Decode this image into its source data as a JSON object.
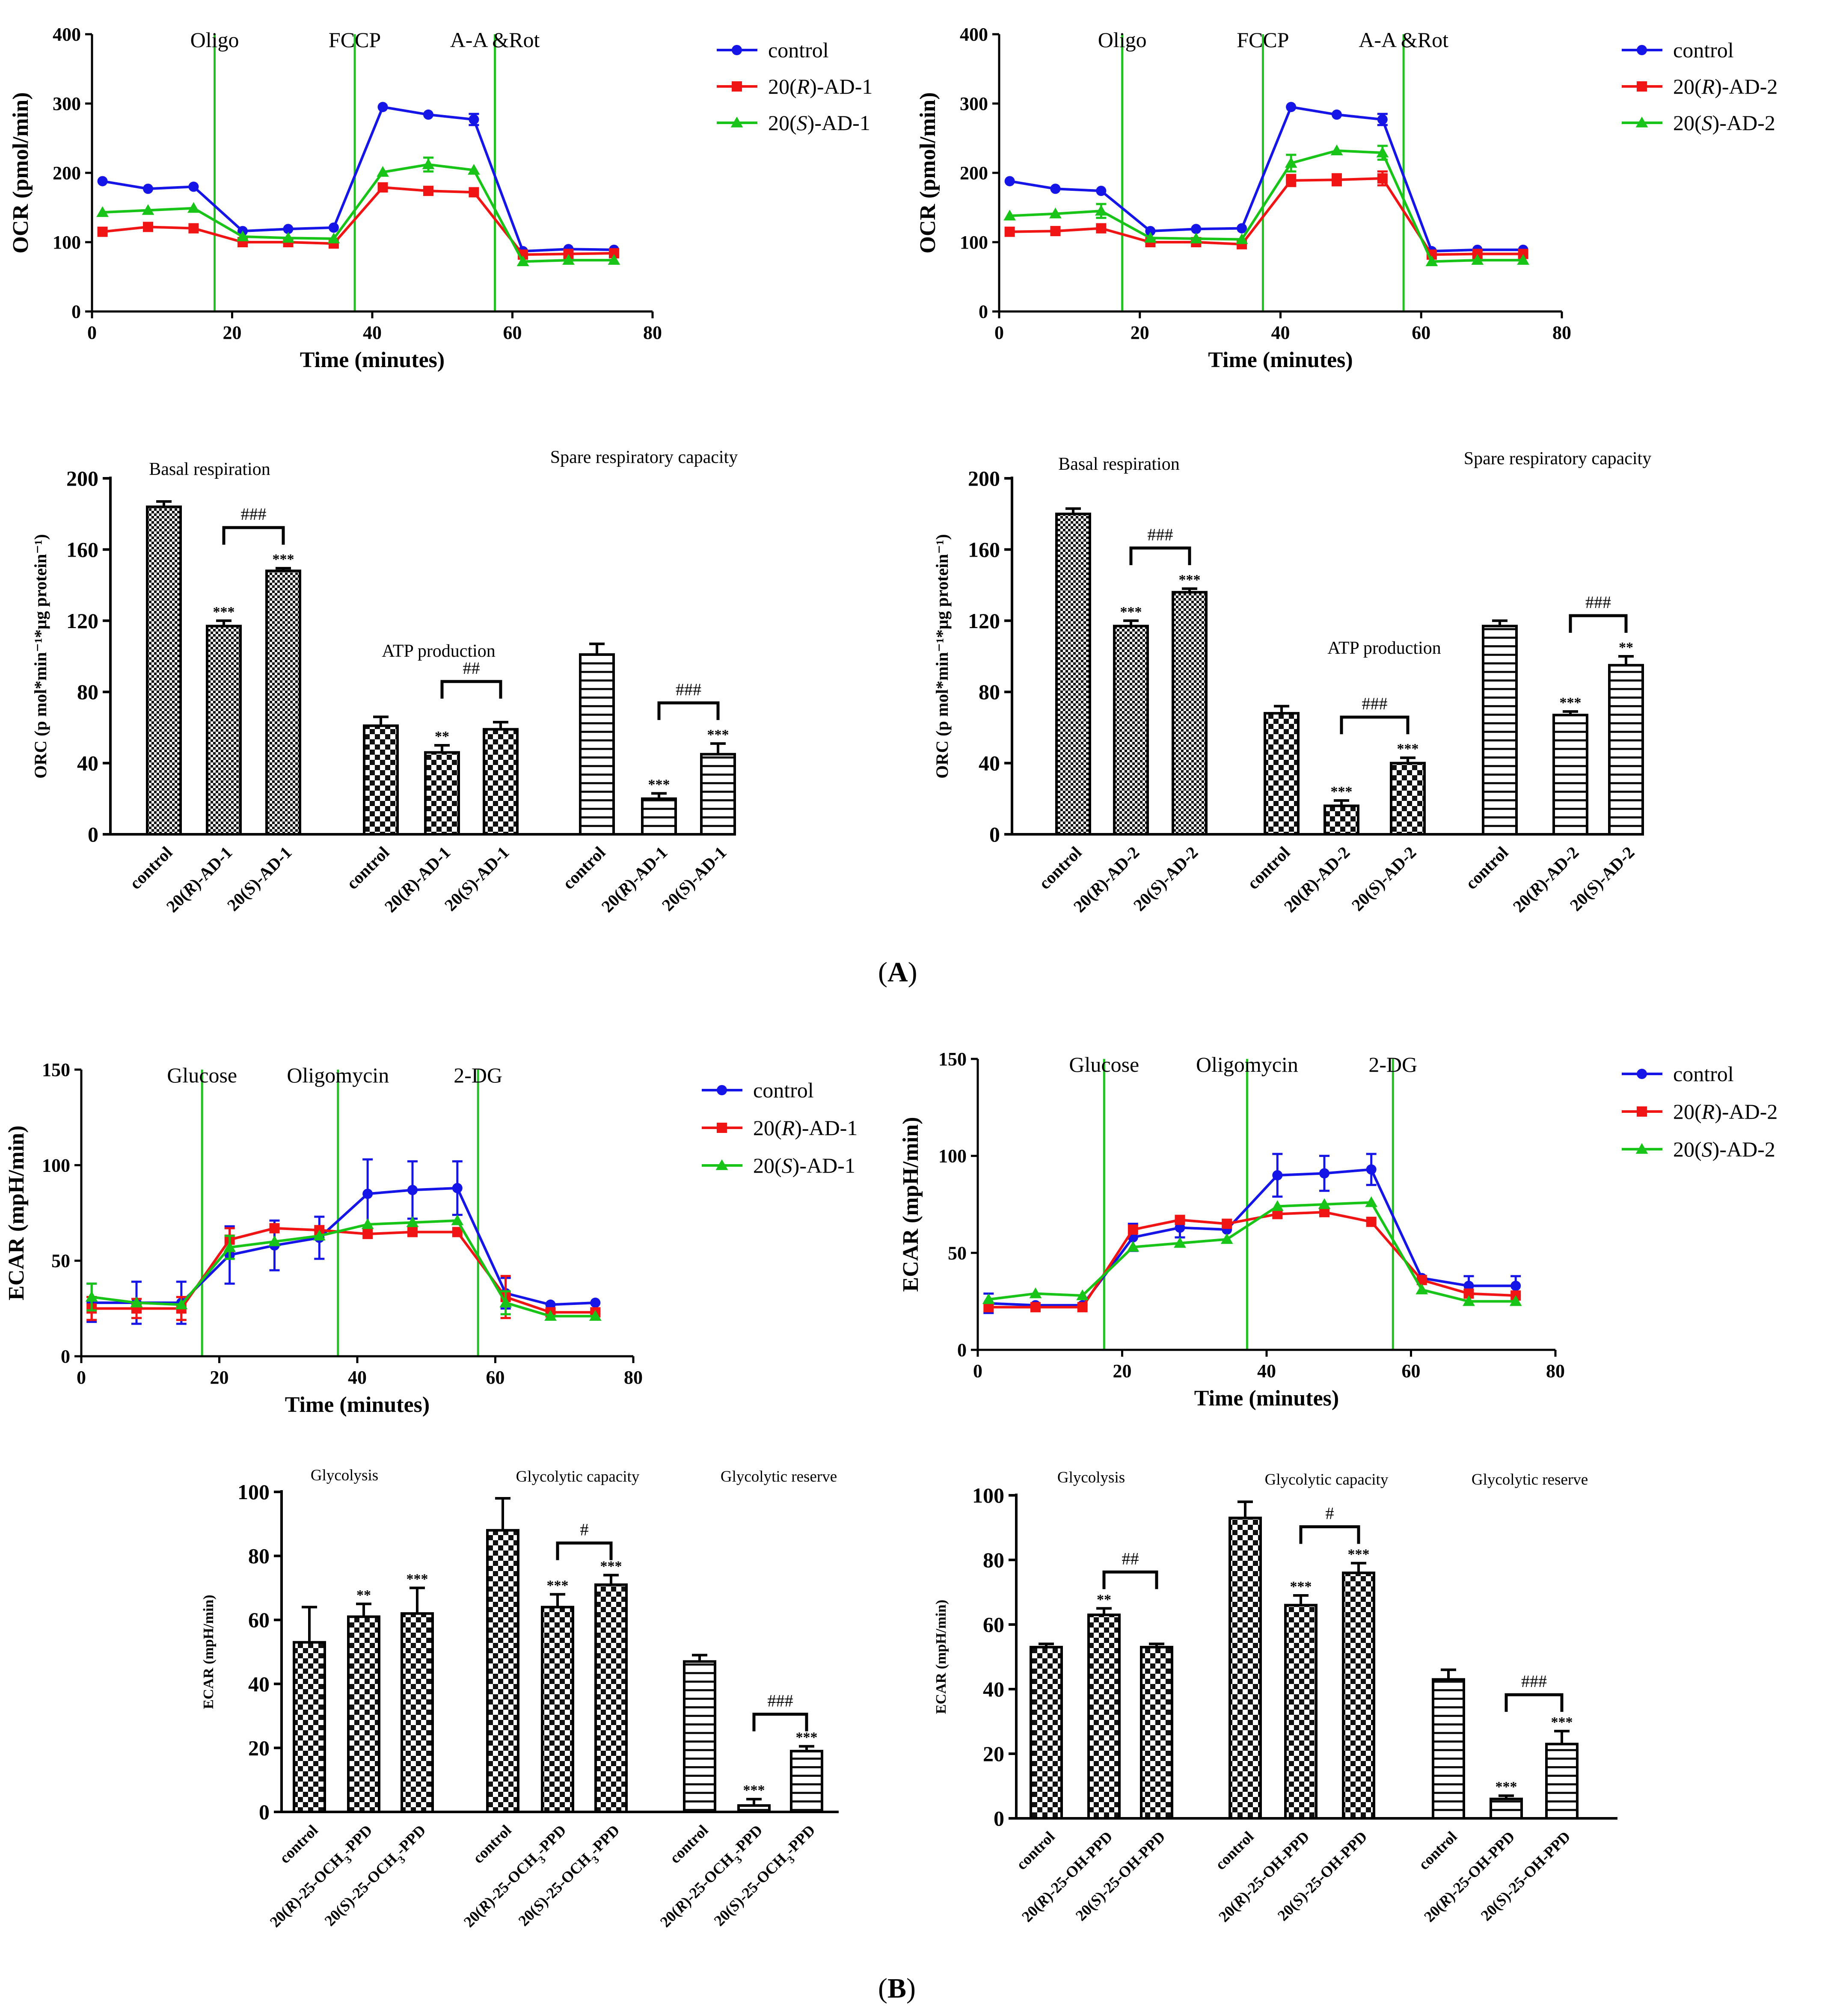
{
  "panel_labels": {
    "a_open": "(",
    "a_letter": "A",
    "a_close": ")",
    "b_open": "(",
    "b_letter": "B",
    "b_close": ")"
  },
  "colors": {
    "control": "#1515e8",
    "r_series": "#f01414",
    "s_series": "#18c418",
    "injection_line": "#22c022"
  },
  "chart_data": [
    {
      "id": "ocr1",
      "type": "line",
      "ylabel": "OCR (pmol/min)",
      "xlabel": "Time (minutes)",
      "xlim": [
        0,
        80
      ],
      "ylim": [
        0,
        400
      ],
      "xticks": [
        0,
        20,
        40,
        60,
        80
      ],
      "yticks": [
        0,
        100,
        200,
        300,
        400
      ],
      "injections": [
        {
          "x": 17.5,
          "label": "Oligo"
        },
        {
          "x": 37.5,
          "label": "FCCP"
        },
        {
          "x": 57.5,
          "label": "A-A &Rot"
        }
      ],
      "x": [
        1.5,
        8,
        14.5,
        21.5,
        28,
        34.5,
        41.5,
        48,
        54.5,
        61.5,
        68,
        74.5
      ],
      "series": [
        {
          "name": "control",
          "color_key": "control",
          "marker": "circle",
          "values": [
            188,
            177,
            180,
            116,
            119,
            121,
            295,
            284,
            277,
            87,
            90,
            89
          ],
          "errors": [
            3,
            3,
            3,
            3,
            3,
            3,
            3,
            3,
            8,
            3,
            3,
            3
          ]
        },
        {
          "name": "20(R)-AD-1",
          "color_key": "r_series",
          "marker": "square",
          "values": [
            115,
            122,
            120,
            100,
            100,
            98,
            179,
            174,
            172,
            82,
            83,
            84
          ],
          "errors": [
            3,
            3,
            3,
            3,
            3,
            3,
            3,
            3,
            3,
            3,
            3,
            3
          ]
        },
        {
          "name": "20(S)-AD-1",
          "color_key": "s_series",
          "marker": "triangle",
          "values": [
            143,
            146,
            149,
            108,
            106,
            105,
            201,
            212,
            204,
            72,
            74,
            74
          ],
          "errors": [
            3,
            3,
            3,
            3,
            3,
            3,
            3,
            10,
            3,
            3,
            3,
            3
          ]
        }
      ]
    },
    {
      "id": "ocr2",
      "type": "line",
      "ylabel": "OCR (pmol/min)",
      "xlabel": "Time (minutes)",
      "xlim": [
        0,
        80
      ],
      "ylim": [
        0,
        400
      ],
      "xticks": [
        0,
        20,
        40,
        60,
        80
      ],
      "yticks": [
        0,
        100,
        200,
        300,
        400
      ],
      "injections": [
        {
          "x": 17.5,
          "label": "Oligo"
        },
        {
          "x": 37.5,
          "label": "FCCP"
        },
        {
          "x": 57.5,
          "label": "A-A &Rot"
        }
      ],
      "x": [
        1.5,
        8,
        14.5,
        21.5,
        28,
        34.5,
        41.5,
        48,
        54.5,
        61.5,
        68,
        74.5
      ],
      "series": [
        {
          "name": "control",
          "color_key": "control",
          "marker": "circle",
          "values": [
            188,
            177,
            174,
            116,
            119,
            120,
            295,
            284,
            277,
            87,
            89,
            89
          ],
          "errors": [
            3,
            3,
            3,
            3,
            3,
            3,
            3,
            3,
            8,
            3,
            3,
            3
          ]
        },
        {
          "name": "20(R)-AD-2",
          "color_key": "r_series",
          "marker": "square",
          "values": [
            115,
            116,
            120,
            100,
            100,
            97,
            189,
            190,
            192,
            82,
            83,
            83
          ],
          "errors": [
            3,
            3,
            3,
            3,
            3,
            3,
            8,
            8,
            10,
            3,
            3,
            3
          ]
        },
        {
          "name": "20(S)-AD-2",
          "color_key": "s_series",
          "marker": "triangle",
          "values": [
            138,
            141,
            145,
            106,
            105,
            104,
            214,
            232,
            229,
            72,
            74,
            74
          ],
          "errors": [
            3,
            3,
            10,
            3,
            3,
            3,
            12,
            3,
            10,
            3,
            3,
            3
          ]
        }
      ]
    },
    {
      "id": "orc1",
      "type": "bar",
      "ylabel": "ORC (p mol*min⁻¹*μg protein⁻¹)",
      "ylim": [
        0,
        200
      ],
      "yticks": [
        0,
        40,
        80,
        120,
        160,
        200
      ],
      "groups": [
        {
          "title": "Basal respiration",
          "pattern": "dense",
          "labels": [
            "control",
            "20(R)-AD-1",
            "20(S)-AD-1"
          ],
          "values": [
            184,
            117,
            148
          ],
          "errors": [
            3,
            3,
            1.5
          ],
          "stars": [
            "",
            "***",
            "***"
          ],
          "bracket": "###"
        },
        {
          "title": "ATP production",
          "pattern": "check",
          "labels": [
            "control",
            "20(R)-AD-1",
            "20(S)-AD-1"
          ],
          "values": [
            61,
            46,
            59
          ],
          "errors": [
            5,
            4,
            4
          ],
          "stars": [
            "",
            "**",
            ""
          ],
          "bracket": "##"
        },
        {
          "title": "Spare respiratory capacity",
          "pattern": "hlines",
          "labels": [
            "control",
            "20(R)-AD-1",
            "20(S)-AD-1"
          ],
          "values": [
            101,
            20,
            45
          ],
          "errors": [
            6,
            3,
            6
          ],
          "stars": [
            "",
            "***",
            "***"
          ],
          "bracket": "###"
        }
      ]
    },
    {
      "id": "orc2",
      "type": "bar",
      "ylabel": "ORC (p mol*min⁻¹*μg protein⁻¹)",
      "ylim": [
        0,
        200
      ],
      "yticks": [
        0,
        40,
        80,
        120,
        160,
        200
      ],
      "groups": [
        {
          "title": "Basal respiration",
          "pattern": "dense",
          "labels": [
            "control",
            "20(R)-AD-2",
            "20(S)-AD-2"
          ],
          "values": [
            180,
            117,
            136
          ],
          "errors": [
            3,
            3,
            2
          ],
          "stars": [
            "",
            "***",
            "***"
          ],
          "bracket": "###"
        },
        {
          "title": "ATP production",
          "pattern": "check",
          "labels": [
            "control",
            "20(R)-AD-2",
            "20(S)-AD-2"
          ],
          "values": [
            68,
            16,
            40
          ],
          "errors": [
            4,
            3,
            3
          ],
          "stars": [
            "",
            "***",
            "***"
          ],
          "bracket": "###"
        },
        {
          "title": "Spare respiratory capacity",
          "pattern": "hlines",
          "labels": [
            "control",
            "20(R)-AD-2",
            "20(S)-AD-2"
          ],
          "values": [
            117,
            67,
            95
          ],
          "errors": [
            3,
            2,
            5
          ],
          "stars": [
            "",
            "***",
            "**"
          ],
          "bracket": "###"
        }
      ]
    },
    {
      "id": "ecar1",
      "type": "line",
      "ylabel": "ECAR (mpH/min)",
      "xlabel": "Time (minutes)",
      "xlim": [
        0,
        80
      ],
      "ylim": [
        0,
        150
      ],
      "xticks": [
        0,
        20,
        40,
        60,
        80
      ],
      "yticks": [
        0,
        50,
        100,
        150
      ],
      "injections": [
        {
          "x": 17.5,
          "label": "Glucose"
        },
        {
          "x": 37.2,
          "label": "Oligomycin"
        },
        {
          "x": 57.5,
          "label": "2-DG"
        }
      ],
      "x": [
        1.5,
        8,
        14.5,
        21.5,
        28,
        34.5,
        41.5,
        48,
        54.5,
        61.5,
        68,
        74.5
      ],
      "series": [
        {
          "name": "control",
          "color_key": "control",
          "marker": "circle",
          "values": [
            28,
            28,
            28,
            53,
            58,
            62,
            85,
            87,
            88,
            33,
            27,
            28
          ],
          "errors": [
            10,
            11,
            11,
            15,
            13,
            11,
            18,
            15,
            14,
            8,
            2,
            2
          ]
        },
        {
          "name": "20(R)-AD-1",
          "color_key": "r_series",
          "marker": "square",
          "values": [
            25,
            25,
            25,
            61,
            67,
            66,
            64,
            65,
            65,
            31,
            23,
            23
          ],
          "errors": [
            6,
            5,
            6,
            6,
            4,
            4,
            4,
            4,
            4,
            11,
            3,
            3
          ]
        },
        {
          "name": "20(S)-AD-1",
          "color_key": "s_series",
          "marker": "triangle",
          "values": [
            31,
            28,
            27,
            57,
            60,
            63,
            69,
            70,
            71,
            28,
            21,
            21
          ],
          "errors": [
            7,
            4,
            4,
            6,
            4,
            4,
            4,
            3,
            4,
            6,
            2,
            2
          ]
        }
      ]
    },
    {
      "id": "ecar2",
      "type": "line",
      "ylabel": "ECAR (mpH/min)",
      "xlabel": "Time (minutes)",
      "xlim": [
        0,
        80
      ],
      "ylim": [
        0,
        150
      ],
      "xticks": [
        0,
        20,
        40,
        60,
        80
      ],
      "yticks": [
        0,
        50,
        100,
        150
      ],
      "injections": [
        {
          "x": 17.5,
          "label": "Glucose"
        },
        {
          "x": 37.3,
          "label": "Oligomycin"
        },
        {
          "x": 57.5,
          "label": "2-DG"
        }
      ],
      "x": [
        1.5,
        8,
        14.5,
        21.5,
        28,
        34.5,
        41.5,
        48,
        54.5,
        61.5,
        68,
        74.5
      ],
      "series": [
        {
          "name": "control",
          "color_key": "control",
          "marker": "circle",
          "values": [
            24,
            23,
            23,
            58,
            63,
            62,
            90,
            91,
            93,
            37,
            33,
            33
          ],
          "errors": [
            5,
            4,
            4,
            7,
            5,
            3,
            11,
            9,
            8,
            4,
            5,
            5
          ]
        },
        {
          "name": "20(R)-AD-2",
          "color_key": "r_series",
          "marker": "square",
          "values": [
            22,
            22,
            22,
            62,
            67,
            65,
            70,
            71,
            66,
            36,
            29,
            28
          ],
          "errors": [
            3,
            3,
            3,
            4,
            3,
            3,
            3,
            3,
            4,
            3,
            3,
            3
          ]
        },
        {
          "name": "20(S)-AD-2",
          "color_key": "s_series",
          "marker": "triangle",
          "values": [
            26,
            29,
            28,
            53,
            55,
            57,
            74,
            75,
            76,
            31,
            25,
            25
          ],
          "errors": [
            3,
            2,
            2,
            3,
            3,
            3,
            3,
            4,
            4,
            3,
            3,
            3
          ]
        }
      ]
    },
    {
      "id": "gly1",
      "type": "bar",
      "ylabel": "ECAR (mpH/min)",
      "ylim": [
        0,
        100
      ],
      "yticks": [
        0,
        20,
        40,
        60,
        80,
        100
      ],
      "groups": [
        {
          "title": "Glycolysis",
          "pattern": "check",
          "labels": [
            "control",
            "20(R)-25-OCH3-PPD",
            "20(S)-25-OCH3-PPD"
          ],
          "values": [
            53,
            61,
            62
          ],
          "errors": [
            11,
            4,
            8
          ],
          "stars": [
            "",
            "**",
            "***"
          ],
          "bracket": ""
        },
        {
          "title": "Glycolytic capacity",
          "pattern": "check",
          "labels": [
            "control",
            "20(R)-25-OCH3-PPD",
            "20(S)-25-OCH3-PPD"
          ],
          "values": [
            88,
            64,
            71
          ],
          "errors": [
            10,
            4,
            3
          ],
          "stars": [
            "",
            "***",
            "***"
          ],
          "bracket": "#"
        },
        {
          "title": "Glycolytic reserve",
          "pattern": "hlines",
          "labels": [
            "control",
            "20(R)-25-OCH3-PPD",
            "20(S)-25-OCH3-PPD"
          ],
          "values": [
            47,
            2,
            19
          ],
          "errors": [
            2,
            2,
            1.5
          ],
          "stars": [
            "",
            "***",
            "***"
          ],
          "bracket": "###"
        }
      ]
    },
    {
      "id": "gly2",
      "type": "bar",
      "ylabel": "ECAR (mpH/min)",
      "ylim": [
        0,
        100
      ],
      "yticks": [
        0,
        20,
        40,
        60,
        80,
        100
      ],
      "groups": [
        {
          "title": "Glycolysis",
          "pattern": "check",
          "labels": [
            "control",
            "20(R)-25-OH-PPD",
            "20(S)-25-OH-PPD"
          ],
          "values": [
            53,
            63,
            53
          ],
          "errors": [
            1,
            2,
            1
          ],
          "stars": [
            "",
            "**",
            ""
          ],
          "bracket": "##"
        },
        {
          "title": "Glycolytic capacity",
          "pattern": "check",
          "labels": [
            "control",
            "20(R)-25-OH-PPD",
            "20(S)-25-OH-PPD"
          ],
          "values": [
            93,
            66,
            76
          ],
          "errors": [
            5,
            3,
            3
          ],
          "stars": [
            "",
            "***",
            "***"
          ],
          "bracket": "#"
        },
        {
          "title": "Glycolytic reserve",
          "pattern": "hlines",
          "labels": [
            "control",
            "20(R)-25-OH-PPD",
            "20(S)-25-OH-PPD"
          ],
          "values": [
            43,
            6,
            23
          ],
          "errors": [
            3,
            1,
            4
          ],
          "stars": [
            "",
            "***",
            "***"
          ],
          "bracket": "###"
        }
      ]
    }
  ]
}
